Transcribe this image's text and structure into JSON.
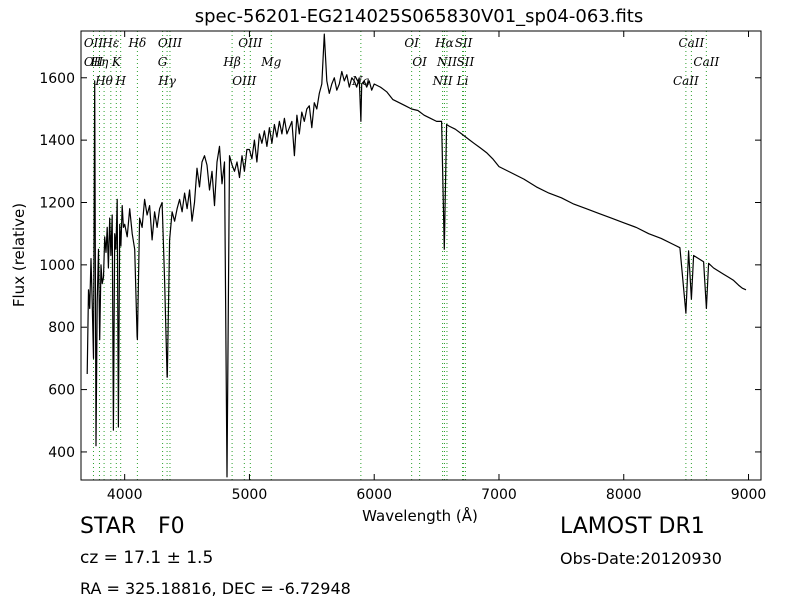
{
  "chart_data": {
    "type": "line",
    "title": "spec-56201-EG214025S065830V01_sp04-063.fits",
    "xlabel": "Wavelength (Å)",
    "ylabel": "Flux (relative)",
    "xlim": [
      3650,
      9100
    ],
    "ylim": [
      310,
      1750
    ],
    "xticks": [
      4000,
      5000,
      6000,
      7000,
      8000,
      9000
    ],
    "yticks": [
      400,
      600,
      800,
      1000,
      1200,
      1400,
      1600
    ],
    "line_color": "#000000",
    "marker_color": "#2ca02c",
    "series": [
      {
        "x": [
          3700,
          3710,
          3720,
          3730,
          3740,
          3750,
          3760,
          3770,
          3780,
          3790,
          3800,
          3810,
          3820,
          3830,
          3840,
          3850,
          3860,
          3870,
          3880,
          3890,
          3900,
          3910,
          3920,
          3930,
          3940,
          3950,
          3960,
          3970,
          3980,
          3990,
          4000,
          4020,
          4040,
          4060,
          4080,
          4100,
          4102,
          4120,
          4140,
          4160,
          4180,
          4200,
          4220,
          4240,
          4260,
          4280,
          4300,
          4320,
          4340,
          4342,
          4360,
          4380,
          4400,
          4420,
          4440,
          4460,
          4480,
          4500,
          4520,
          4540,
          4560,
          4580,
          4600,
          4620,
          4640,
          4660,
          4680,
          4700,
          4720,
          4740,
          4760,
          4780,
          4800,
          4820,
          4840,
          4861,
          4880,
          4900,
          4920,
          4940,
          4960,
          4980,
          5000,
          5020,
          5040,
          5060,
          5080,
          5100,
          5120,
          5140,
          5160,
          5180,
          5200,
          5220,
          5240,
          5260,
          5280,
          5300,
          5320,
          5340,
          5360,
          5380,
          5400,
          5420,
          5440,
          5460,
          5480,
          5500,
          5520,
          5540,
          5560,
          5580,
          5600,
          5620,
          5640,
          5660,
          5680,
          5700,
          5720,
          5740,
          5760,
          5780,
          5800,
          5820,
          5840,
          5860,
          5880,
          5893,
          5900,
          5920,
          5940,
          5960,
          5980,
          6000,
          6050,
          6100,
          6150,
          6200,
          6250,
          6300,
          6350,
          6400,
          6450,
          6500,
          6540,
          6562,
          6580,
          6600,
          6650,
          6700,
          6750,
          6800,
          6850,
          6900,
          6950,
          7000,
          7100,
          7200,
          7300,
          7400,
          7500,
          7600,
          7700,
          7800,
          7900,
          8000,
          8100,
          8200,
          8300,
          8400,
          8450,
          8498,
          8520,
          8542,
          8560,
          8600,
          8640,
          8662,
          8680,
          8720,
          8760,
          8800,
          8840,
          8880,
          8920,
          8950,
          8980
        ],
        "y": [
          650,
          920,
          860,
          1020,
          880,
          700,
          1590,
          420,
          880,
          1050,
          760,
          1000,
          940,
          960,
          1090,
          1040,
          1120,
          990,
          1150,
          1030,
          1160,
          470,
          1100,
          1050,
          1210,
          480,
          1130,
          1060,
          1190,
          1120,
          1130,
          1090,
          1180,
          1100,
          1050,
          770,
          760,
          1150,
          1120,
          1210,
          1160,
          1190,
          1080,
          1170,
          1120,
          1180,
          1200,
          950,
          640,
          640,
          1080,
          1170,
          1140,
          1180,
          1210,
          1170,
          1230,
          1180,
          1240,
          1140,
          1200,
          1310,
          1250,
          1330,
          1350,
          1320,
          1240,
          1300,
          1190,
          1330,
          1380,
          1260,
          1330,
          320,
          1350,
          1320,
          1300,
          1330,
          1280,
          1350,
          1300,
          1370,
          1370,
          1340,
          1400,
          1330,
          1420,
          1390,
          1430,
          1380,
          1440,
          1390,
          1450,
          1410,
          1460,
          1420,
          1470,
          1420,
          1440,
          1460,
          1350,
          1480,
          1420,
          1490,
          1460,
          1500,
          1510,
          1440,
          1520,
          1500,
          1550,
          1580,
          1740,
          1590,
          1550,
          1580,
          1600,
          1560,
          1580,
          1620,
          1590,
          1610,
          1570,
          1600,
          1590,
          1570,
          1600,
          1460,
          1580,
          1590,
          1570,
          1590,
          1560,
          1580,
          1570,
          1555,
          1530,
          1520,
          1510,
          1500,
          1495,
          1480,
          1470,
          1460,
          1460,
          1050,
          1450,
          1445,
          1435,
          1420,
          1405,
          1390,
          1375,
          1360,
          1340,
          1315,
          1295,
          1275,
          1250,
          1230,
          1215,
          1195,
          1180,
          1165,
          1150,
          1135,
          1120,
          1100,
          1085,
          1065,
          1055,
          845,
          1045,
          890,
          1030,
          1020,
          1010,
          860,
          1005,
          990,
          980,
          970,
          960,
          950,
          935,
          925,
          920
        ]
      }
    ],
    "lines": [
      {
        "x": 3750,
        "label": "OII",
        "label2": "OII"
      },
      {
        "x": 3798,
        "label": "Hη"
      },
      {
        "x": 3835,
        "label": "Hθ"
      },
      {
        "x": 3889,
        "label": "Hε"
      },
      {
        "x": 3933,
        "label": "K"
      },
      {
        "x": 3968,
        "label": "H"
      },
      {
        "x": 4102,
        "label": "Hδ"
      },
      {
        "x": 4304,
        "label": "G"
      },
      {
        "x": 4340,
        "label": "Hγ"
      },
      {
        "x": 4363,
        "label": "OIII"
      },
      {
        "x": 4861,
        "label": "Hβ"
      },
      {
        "x": 4959,
        "label": "OIII"
      },
      {
        "x": 5007,
        "label": "OIII"
      },
      {
        "x": 5175,
        "label": "Mg"
      },
      {
        "x": 5893,
        "label": "Na"
      },
      {
        "x": 6300,
        "label": "OI"
      },
      {
        "x": 6364,
        "label": "OI"
      },
      {
        "x": 6548,
        "label": "NII"
      },
      {
        "x": 6563,
        "label": "Hα"
      },
      {
        "x": 6583,
        "label": "NII"
      },
      {
        "x": 6708,
        "label": "Li"
      },
      {
        "x": 6716,
        "label": "SII"
      },
      {
        "x": 6731,
        "label": "SII"
      },
      {
        "x": 8498,
        "label": "CaII"
      },
      {
        "x": 8542,
        "label": "CaII"
      },
      {
        "x": 8662,
        "label": "CaII"
      }
    ]
  },
  "footer": {
    "class": "STAR",
    "subclass": "F0",
    "cz": "cz = 17.1 ± 1.5",
    "coords": "RA = 325.18816, DEC = -6.72948",
    "survey": "LAMOST DR1",
    "obs_date": "Obs-Date:20120930"
  }
}
